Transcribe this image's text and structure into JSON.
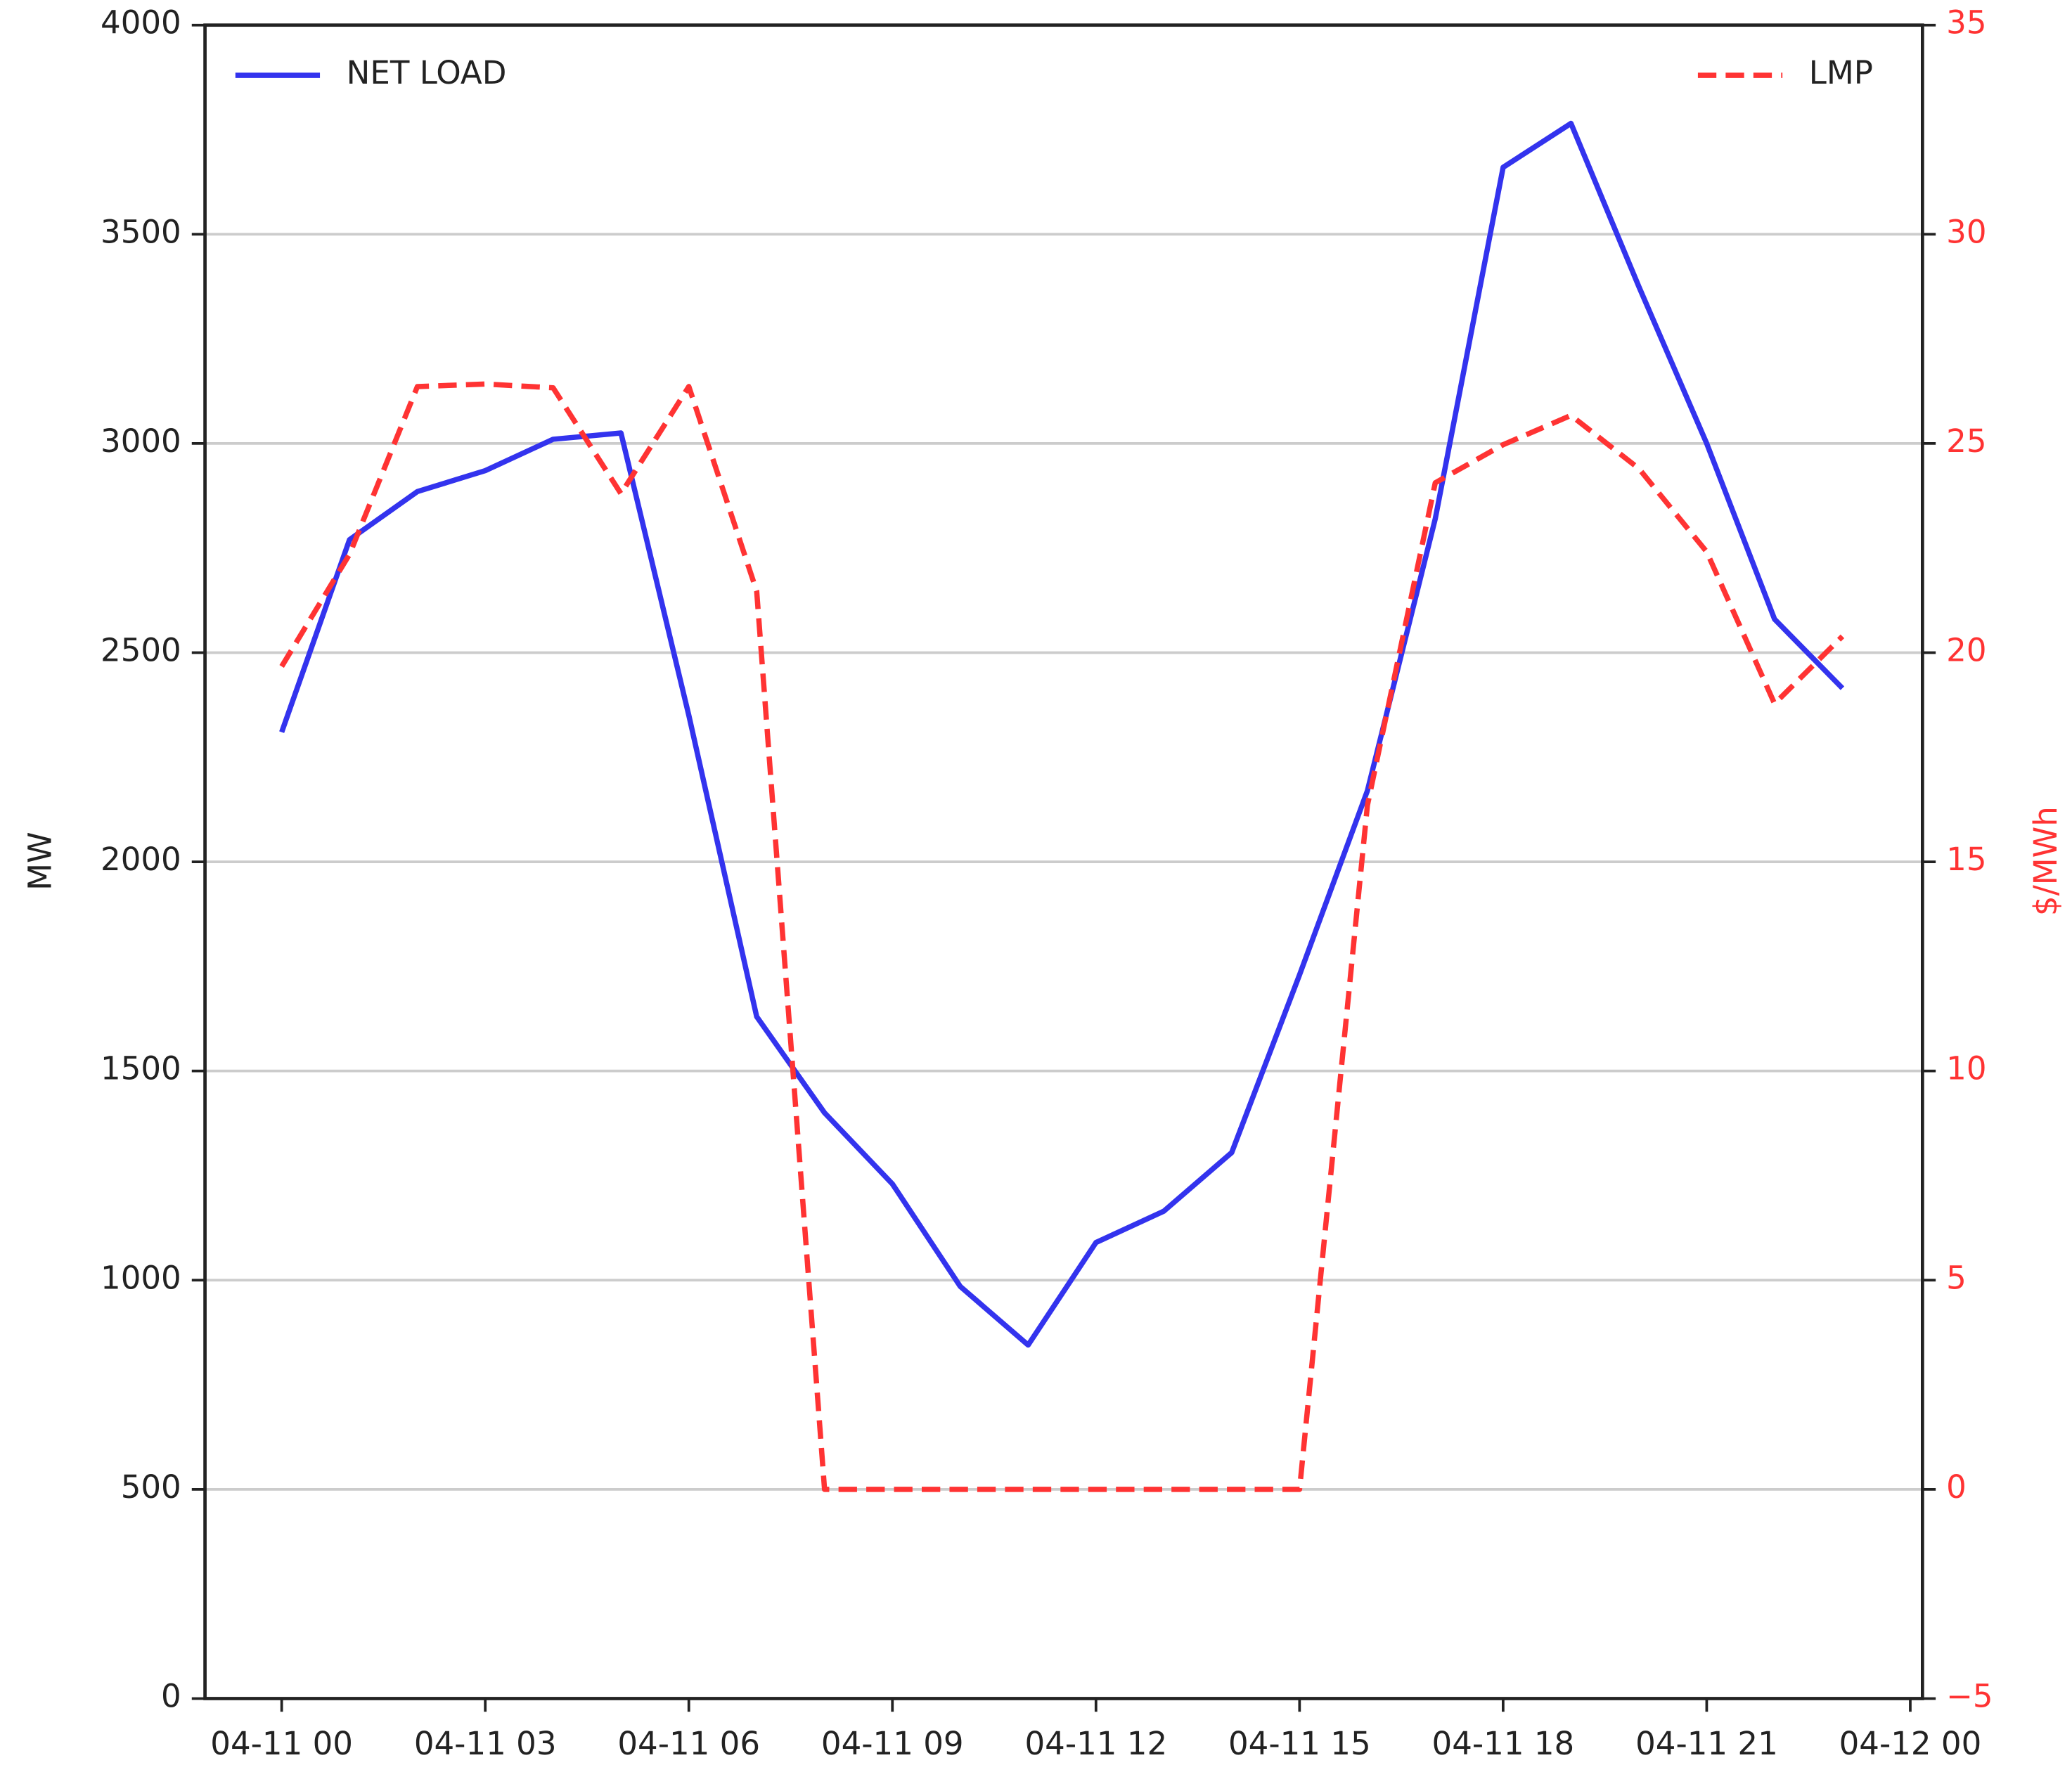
{
  "chart_data": {
    "type": "line",
    "x": [
      0,
      1,
      2,
      3,
      4,
      5,
      6,
      7,
      8,
      9,
      10,
      11,
      12,
      13,
      14,
      15,
      16,
      17,
      18,
      19,
      20,
      21,
      22,
      23
    ],
    "xlim": [
      -1.13,
      24.18
    ],
    "xticks": [
      {
        "value": 0,
        "label": "04-11 00"
      },
      {
        "value": 3,
        "label": "04-11 03"
      },
      {
        "value": 6,
        "label": "04-11 06"
      },
      {
        "value": 9,
        "label": "04-11 09"
      },
      {
        "value": 12,
        "label": "04-11 12"
      },
      {
        "value": 15,
        "label": "04-11 15"
      },
      {
        "value": 18,
        "label": "04-11 18"
      },
      {
        "value": 21,
        "label": "04-11 21"
      },
      {
        "value": 24,
        "label": "04-12 00"
      }
    ],
    "ylabel": "MW",
    "ylim": [
      0,
      4000
    ],
    "yticks": [
      0,
      500,
      1000,
      1500,
      2000,
      2500,
      3000,
      3500,
      4000
    ],
    "y2label": "$/MWh",
    "y2lim": [
      -5,
      35
    ],
    "y2ticks": [
      {
        "value": -5,
        "label": "−5"
      },
      0,
      5,
      10,
      15,
      20,
      25,
      30,
      35
    ],
    "y2color": "#ff3333",
    "grid": true,
    "series": [
      {
        "name": "NET LOAD",
        "color": "#3333ee",
        "dash": false,
        "legend": "upper left",
        "values": [
          2310,
          2770,
          2885,
          2935,
          3010,
          3025,
          2350,
          1630,
          1400,
          1230,
          985,
          845,
          1090,
          1165,
          1305,
          1730,
          2170,
          2820,
          3660,
          3765,
          3375,
          3000,
          2580,
          2415
        ]
      },
      {
        "name": "LMP",
        "color": "#ff3333",
        "dash": true,
        "legend": "upper right",
        "axis": "y2",
        "values": [
          19.67,
          22.35,
          26.36,
          26.42,
          26.33,
          23.8,
          26.36,
          21.47,
          0,
          0,
          0,
          0,
          0,
          0,
          0,
          0,
          16.35,
          24.06,
          24.97,
          25.67,
          24.4,
          22.41,
          18.78,
          20.39
        ]
      }
    ]
  }
}
